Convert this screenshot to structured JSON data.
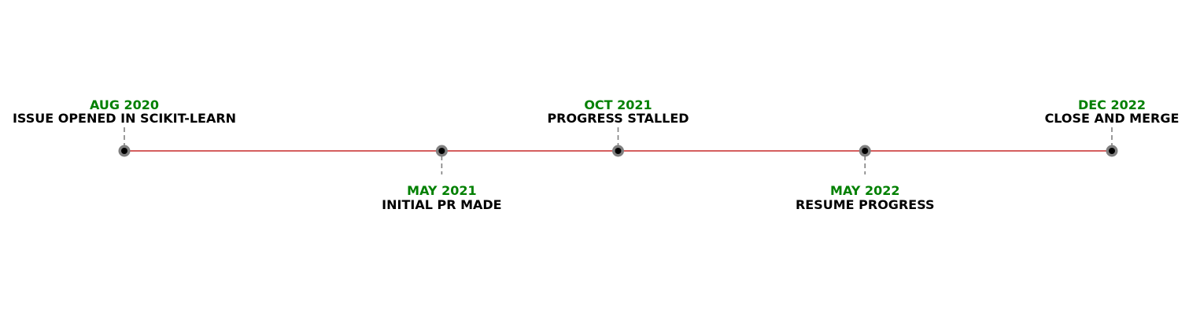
{
  "timeline": {
    "colors": {
      "line": "#c62828",
      "marker_outer": "#808080",
      "marker_inner": "#000000",
      "stem": "#808080",
      "date_text": "#008000",
      "label_text": "#000000"
    },
    "events": [
      {
        "date": "AUG 2020",
        "label": "ISSUE OPENED IN SCIKIT-LEARN",
        "side": "above"
      },
      {
        "date": "MAY 2021",
        "label": "INITIAL PR MADE",
        "side": "below"
      },
      {
        "date": "OCT 2021",
        "label": "PROGRESS STALLED",
        "side": "above"
      },
      {
        "date": "MAY 2022",
        "label": "RESUME PROGRESS",
        "side": "below"
      },
      {
        "date": "DEC 2022",
        "label": "CLOSE AND MERGE",
        "side": "above"
      }
    ]
  }
}
